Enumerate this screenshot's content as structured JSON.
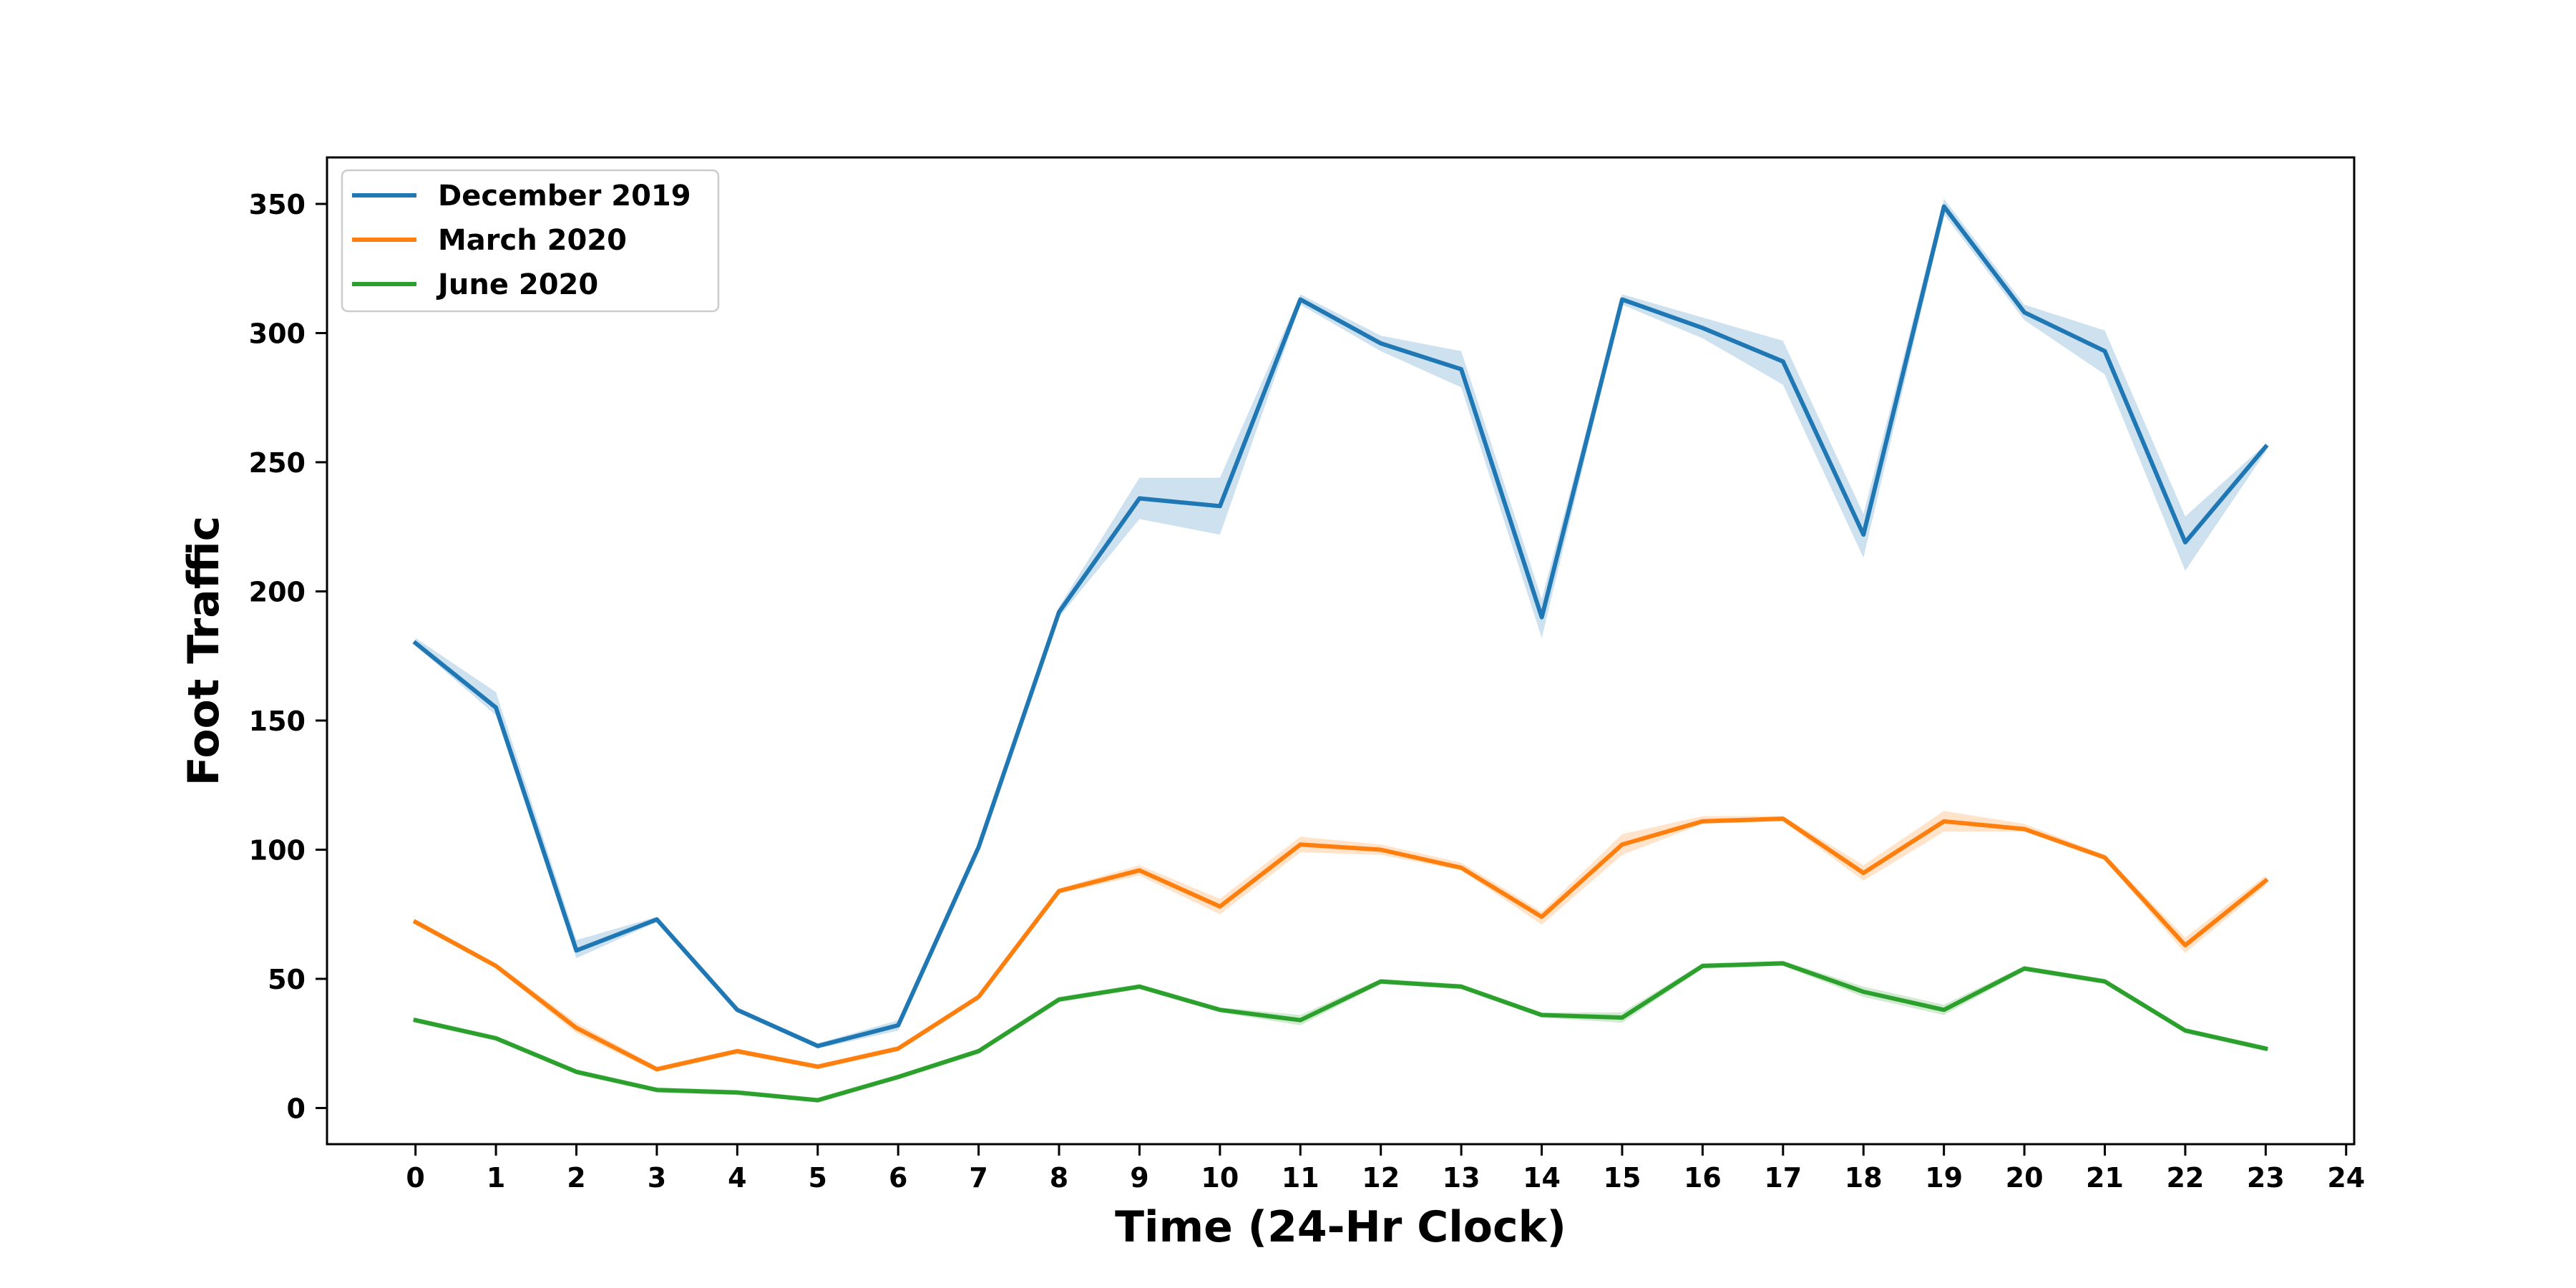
{
  "chart_data": {
    "type": "line",
    "title": "",
    "xlabel": "Time (24-Hr Clock)",
    "ylabel": "Foot Traffic",
    "xlim": [
      -1.1,
      24.1
    ],
    "ylim": [
      -14,
      368
    ],
    "xticks": [
      0,
      1,
      2,
      3,
      4,
      5,
      6,
      7,
      8,
      9,
      10,
      11,
      12,
      13,
      14,
      15,
      16,
      17,
      18,
      19,
      20,
      21,
      22,
      23,
      24
    ],
    "yticks": [
      0,
      50,
      100,
      150,
      200,
      250,
      300,
      350
    ],
    "grid": false,
    "legend_position": "top-left",
    "x": [
      0,
      1,
      2,
      3,
      4,
      5,
      6,
      7,
      8,
      9,
      10,
      11,
      12,
      13,
      14,
      15,
      16,
      17,
      18,
      19,
      20,
      21,
      22,
      23
    ],
    "series": [
      {
        "name": "December 2019",
        "color": "#1f77b4",
        "values": [
          180,
          155,
          61,
          73,
          38,
          24,
          32,
          101,
          192,
          236,
          233,
          313,
          296,
          286,
          190,
          313,
          302,
          289,
          222,
          349,
          308,
          293,
          219,
          256
        ],
        "ci_lower": [
          179,
          152,
          58,
          72,
          37,
          23,
          30,
          100,
          190,
          228,
          222,
          311,
          293,
          279,
          182,
          311,
          298,
          280,
          213,
          346,
          305,
          284,
          208,
          254
        ],
        "ci_upper": [
          182,
          161,
          65,
          74,
          39,
          25,
          34,
          102,
          194,
          244,
          244,
          315,
          299,
          293,
          197,
          315,
          306,
          297,
          230,
          352,
          311,
          301,
          229,
          257
        ]
      },
      {
        "name": "March 2020",
        "color": "#ff7f0e",
        "values": [
          72,
          55,
          31,
          15,
          22,
          16,
          23,
          43,
          84,
          92,
          78,
          102,
          100,
          93,
          74,
          102,
          111,
          112,
          91,
          111,
          108,
          97,
          63,
          88
        ],
        "ci_lower": [
          71,
          54,
          29,
          14,
          21,
          15,
          22,
          42,
          83,
          90,
          75,
          99,
          98,
          92,
          71,
          98,
          110,
          111,
          88,
          107,
          107,
          96,
          60,
          86
        ],
        "ci_upper": [
          73,
          56,
          33,
          16,
          23,
          17,
          24,
          44,
          85,
          94,
          81,
          105,
          102,
          95,
          76,
          106,
          113,
          113,
          94,
          115,
          110,
          98,
          66,
          90
        ]
      },
      {
        "name": "June 2020",
        "color": "#2ca02c",
        "values": [
          34,
          27,
          14,
          7,
          6,
          3,
          12,
          22,
          42,
          47,
          38,
          34,
          49,
          47,
          36,
          35,
          55,
          56,
          45,
          38,
          54,
          49,
          30,
          23
        ],
        "ci_lower": [
          33,
          26,
          13,
          6,
          5,
          3,
          11,
          21,
          41,
          46,
          37,
          32,
          48,
          46,
          35,
          33,
          54,
          55,
          43,
          36,
          53,
          48,
          29,
          22
        ],
        "ci_upper": [
          35,
          28,
          15,
          8,
          7,
          4,
          13,
          23,
          43,
          48,
          39,
          36,
          50,
          48,
          37,
          37,
          56,
          57,
          47,
          40,
          55,
          50,
          31,
          24
        ]
      }
    ]
  }
}
